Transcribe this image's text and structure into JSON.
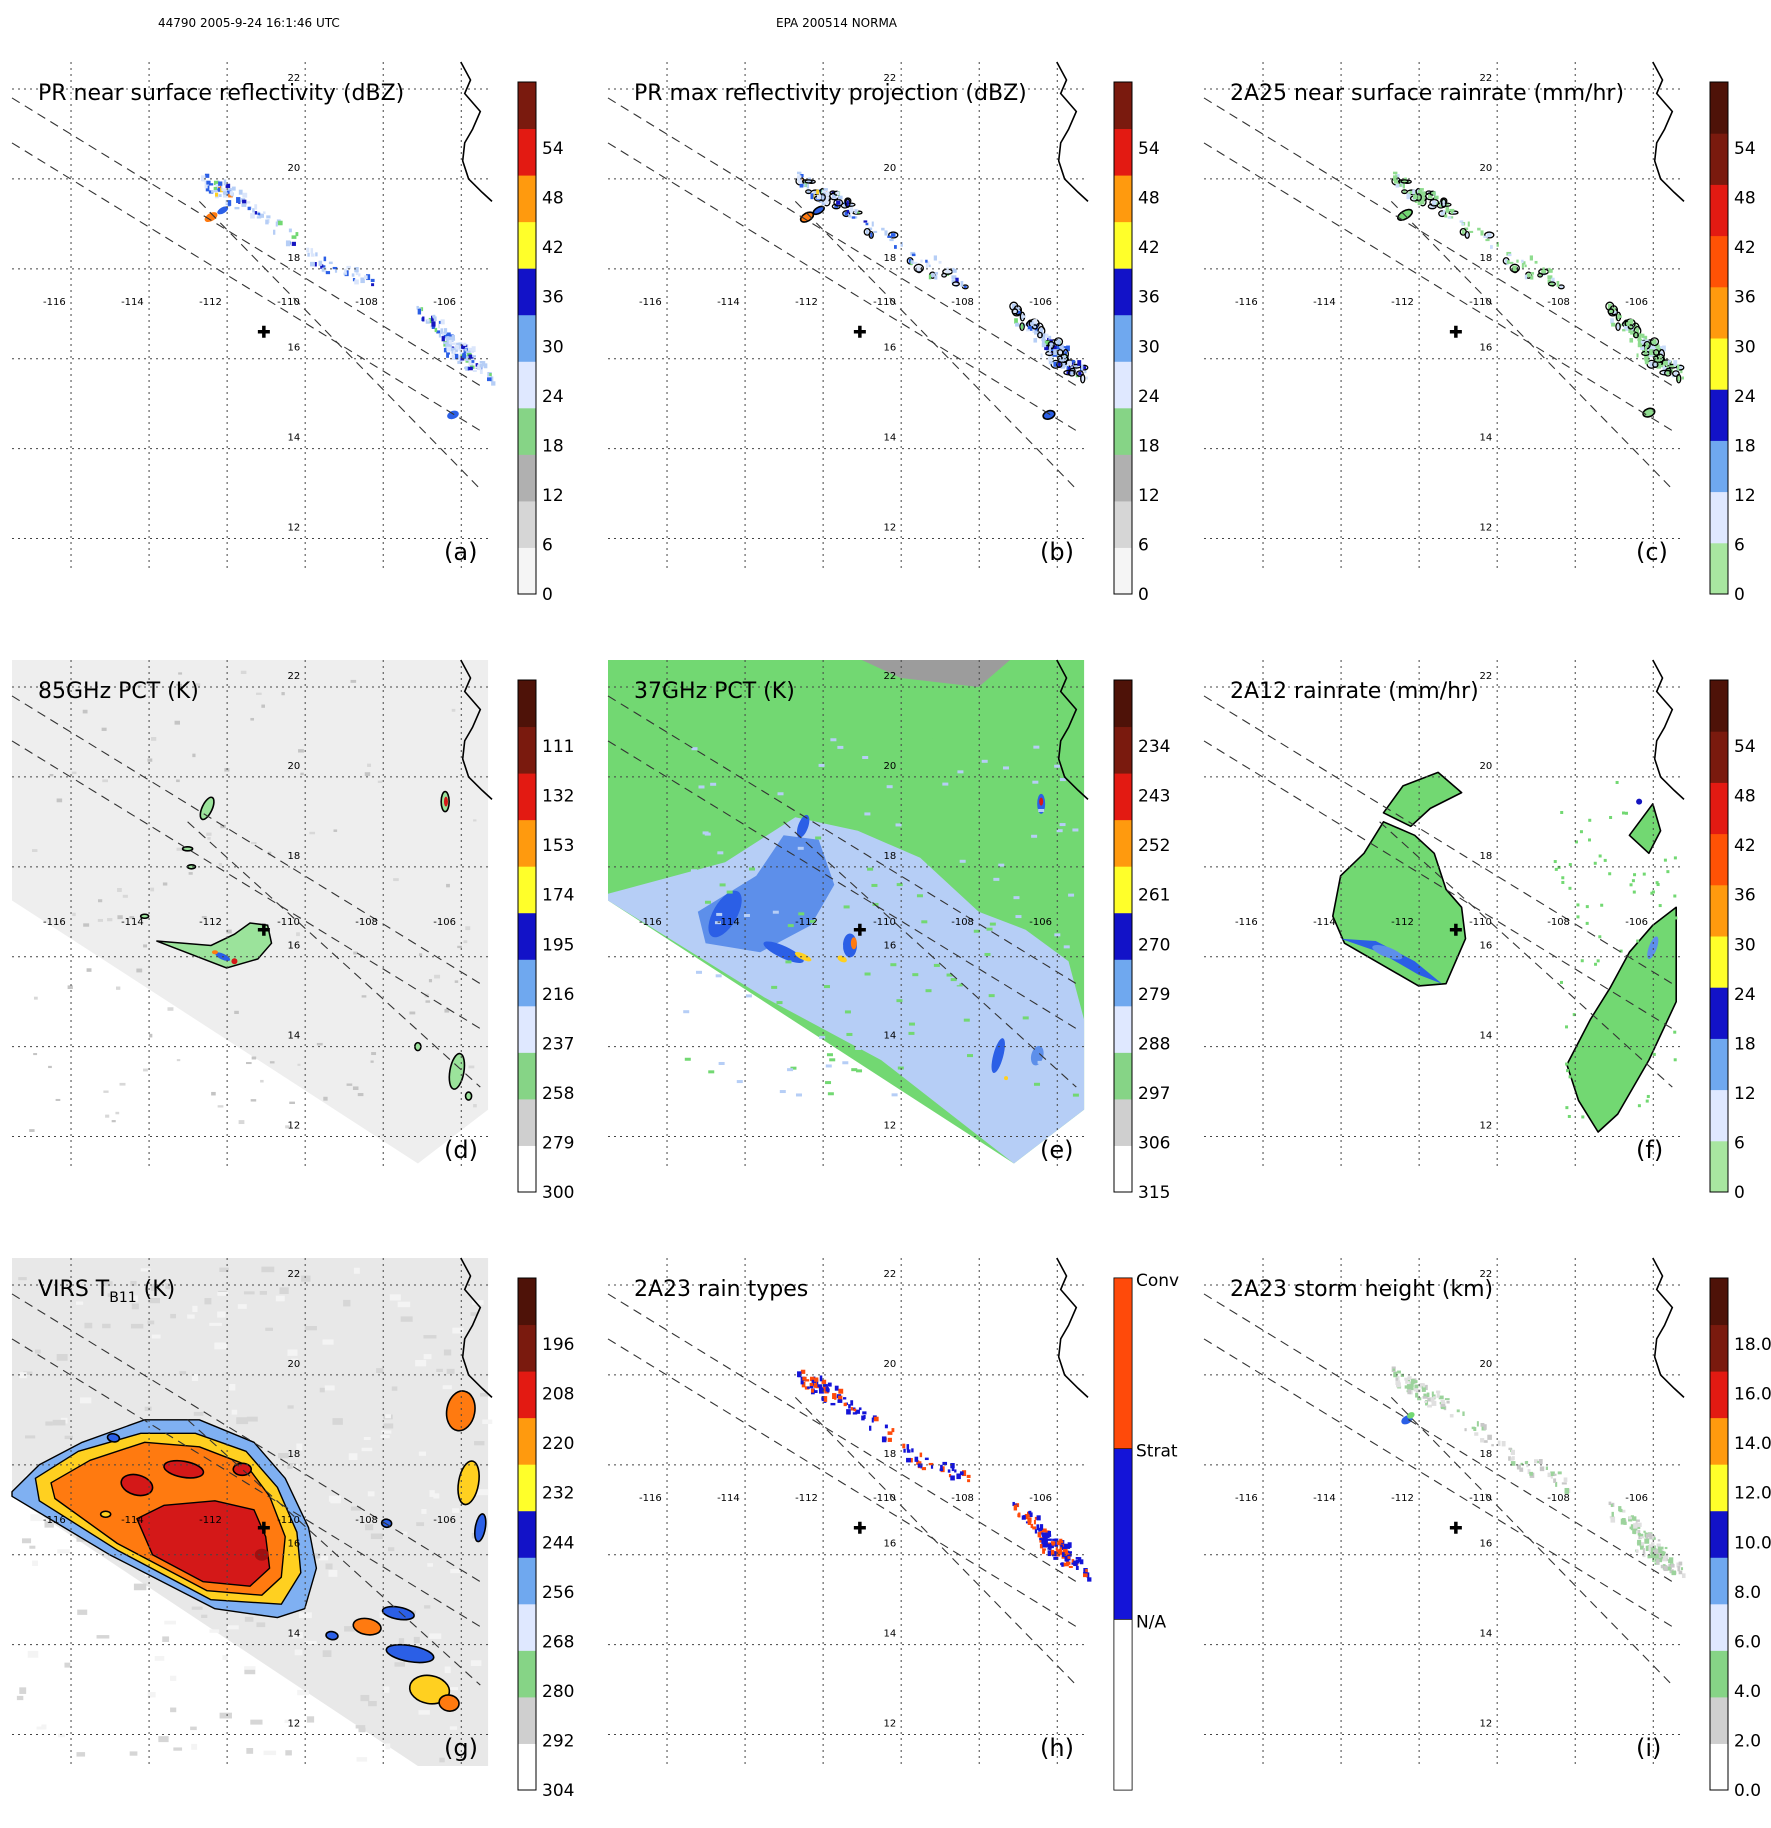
{
  "header": {
    "left": "44790 2005-9-24 16:1:46 UTC",
    "center": "EPA 200514 NORMA"
  },
  "colors": {
    "dbz_scale": [
      "#f2f2f2",
      "#dcdcdc",
      "#bcbcbc",
      "#9c9c9c",
      "#8bd68b",
      "#63c263",
      "#dfe8ff",
      "#b0ccf7",
      "#6fa8ef",
      "#3c72e6",
      "#1212c8",
      "#ffff2a",
      "#ffcb19",
      "#ff9a0e",
      "#ff5205",
      "#e31a12",
      "#b40a0a",
      "#7a1a0e",
      "#4e1208"
    ],
    "rain_scale": [
      "#a8e6a0",
      "#72cf72",
      "#dfe8ff",
      "#b0ccf7",
      "#6fa8ef",
      "#3c72e6",
      "#1212c8",
      "#ffff2a",
      "#ffcb19",
      "#ff9a0e",
      "#ff5205",
      "#e31a12",
      "#b40a0a",
      "#7a1a0e",
      "#4e1208"
    ],
    "gray_to_color": [
      "#ffffff",
      "#e8e8e8",
      "#cfcfcf",
      "#a8a8a8",
      "#8bd68b",
      "#63c263",
      "#dfe8ff",
      "#b0ccf7",
      "#6fa8ef",
      "#3c72e6",
      "#1212c8",
      "#ffff2a",
      "#ffcb19",
      "#ff9a0e",
      "#ff5205",
      "#e31a12",
      "#b40a0a",
      "#7a1a0e",
      "#4e1208"
    ],
    "raintype": [
      "#ffffff",
      "#1414d8",
      "#ff4a0a"
    ],
    "green": "#72d872",
    "lightblue": "#b6cef6",
    "blue": "#2b5fe6",
    "navy": "#1414c0",
    "red": "#d41818",
    "orange": "#ff7a10",
    "yellow": "#ffd020",
    "lightgray": "#e6e6e6"
  },
  "chart_data": [
    {
      "id": "a",
      "type": "heatmap",
      "title": "PR near surface reflectivity (dBZ)",
      "label": "(a)",
      "colorbar": {
        "ticks": [
          "0",
          "6",
          "12",
          "18",
          "24",
          "30",
          "36",
          "42",
          "48",
          "54"
        ],
        "vmin": 0,
        "vmax": 60
      },
      "lon_ticks": [
        "-116",
        "-114",
        "-112",
        "-110",
        "-108",
        "-106"
      ],
      "lat_ticks": [
        "22",
        "20",
        "18",
        "16",
        "14",
        "12"
      ],
      "swath": "pr",
      "field": "pr_surface"
    },
    {
      "id": "b",
      "type": "heatmap",
      "title": "PR max reflectivity projection (dBZ)",
      "label": "(b)",
      "colorbar": {
        "ticks": [
          "0",
          "6",
          "12",
          "18",
          "24",
          "30",
          "36",
          "42",
          "48",
          "54"
        ],
        "vmin": 0,
        "vmax": 60
      },
      "lon_ticks": [
        "-116",
        "-114",
        "-112",
        "-110",
        "-108",
        "-106"
      ],
      "lat_ticks": [
        "22",
        "20",
        "18",
        "16",
        "14",
        "12"
      ],
      "swath": "pr",
      "field": "pr_max"
    },
    {
      "id": "c",
      "type": "heatmap",
      "title": "2A25 near surface rainrate (mm/hr)",
      "label": "(c)",
      "colorbar": {
        "ticks": [
          "0",
          "6",
          "12",
          "18",
          "24",
          "30",
          "36",
          "42",
          "48",
          "54"
        ],
        "vmin": 0,
        "vmax": 60
      },
      "lon_ticks": [
        "-116",
        "-114",
        "-112",
        "-110",
        "-108",
        "-106"
      ],
      "lat_ticks": [
        "22",
        "20",
        "18",
        "16",
        "14",
        "12"
      ],
      "swath": "pr",
      "field": "rain25"
    },
    {
      "id": "d",
      "type": "heatmap",
      "title": "85GHz PCT (K)",
      "label": "(d)",
      "colorbar": {
        "ticks": [
          "300",
          "279",
          "258",
          "237",
          "216",
          "195",
          "174",
          "153",
          "132",
          "111"
        ],
        "vmin": 300,
        "vmax": 90
      },
      "lon_ticks": [
        "-116",
        "-114",
        "-112",
        "-110",
        "-108",
        "-106"
      ],
      "lat_ticks": [
        "22",
        "20",
        "18",
        "16",
        "14",
        "12"
      ],
      "swath": "tmi",
      "field": "pct85"
    },
    {
      "id": "e",
      "type": "heatmap",
      "title": "37GHz PCT (K)",
      "label": "(e)",
      "colorbar": {
        "ticks": [
          "315",
          "306",
          "297",
          "288",
          "279",
          "270",
          "261",
          "252",
          "243",
          "234"
        ],
        "vmin": 315,
        "vmax": 225
      },
      "lon_ticks": [
        "-116",
        "-114",
        "-112",
        "-110",
        "-108",
        "-106"
      ],
      "lat_ticks": [
        "22",
        "20",
        "18",
        "16",
        "14",
        "12"
      ],
      "swath": "tmi",
      "field": "pct37"
    },
    {
      "id": "f",
      "type": "heatmap",
      "title": "2A12 rainrate (mm/hr)",
      "label": "(f)",
      "colorbar": {
        "ticks": [
          "0",
          "6",
          "12",
          "18",
          "24",
          "30",
          "36",
          "42",
          "48",
          "54"
        ],
        "vmin": 0,
        "vmax": 60
      },
      "lon_ticks": [
        "-116",
        "-114",
        "-112",
        "-110",
        "-108",
        "-106"
      ],
      "lat_ticks": [
        "22",
        "20",
        "18",
        "16",
        "14",
        "12"
      ],
      "swath": "tmi",
      "field": "rain12"
    },
    {
      "id": "g",
      "type": "heatmap",
      "title": "VIRS T",
      "title_sub": "B11",
      "title_end": " (K)",
      "label": "(g)",
      "colorbar": {
        "ticks": [
          "304",
          "292",
          "280",
          "268",
          "256",
          "244",
          "232",
          "220",
          "208",
          "196"
        ],
        "vmin": 304,
        "vmax": 184
      },
      "lon_ticks": [
        "-116",
        "-114",
        "-112",
        "-110",
        "-108",
        "-106"
      ],
      "lat_ticks": [
        "22",
        "20",
        "18",
        "16",
        "14",
        "12"
      ],
      "swath": "virs",
      "field": "virs"
    },
    {
      "id": "h",
      "type": "heatmap",
      "title": "2A23 rain types",
      "label": "(h)",
      "colorbar": {
        "categories": [
          "N/A",
          "Strat",
          "Conv"
        ]
      },
      "lon_ticks": [
        "-116",
        "-114",
        "-112",
        "-110",
        "-108",
        "-106"
      ],
      "lat_ticks": [
        "22",
        "20",
        "18",
        "16",
        "14",
        "12"
      ],
      "swath": "pr",
      "field": "raintype"
    },
    {
      "id": "i",
      "type": "heatmap",
      "title": "2A23 storm height (km)",
      "label": "(i)",
      "colorbar": {
        "ticks": [
          "0.0",
          "2.0",
          "4.0",
          "6.0",
          "8.0",
          "10.0",
          "12.0",
          "14.0",
          "16.0",
          "18.0"
        ],
        "vmin": 0,
        "vmax": 20
      },
      "lon_ticks": [
        "-116",
        "-114",
        "-112",
        "-110",
        "-108",
        "-106"
      ],
      "lat_ticks": [
        "22",
        "20",
        "18",
        "16",
        "14",
        "12"
      ],
      "swath": "pr",
      "field": "height"
    }
  ],
  "map": {
    "lon_range": [
      -117.0,
      -104.7
    ],
    "lat_range": [
      10.9,
      22.2
    ],
    "grid_lons": [
      -116,
      -114,
      -112,
      -110,
      -108,
      -106
    ],
    "grid_lats": [
      22,
      20,
      18,
      16,
      14,
      12
    ],
    "storm_center": {
      "lon": -110.7,
      "lat": 16.2
    },
    "pr_swath_edges": [
      [
        [
          -117.0,
          21.4
        ],
        [
          -105.0,
          15.0
        ]
      ],
      [
        [
          -117.0,
          20.4
        ],
        [
          -105.0,
          14.0
        ]
      ],
      [
        [
          -112.2,
          19.1
        ],
        [
          -105.0,
          12.7
        ]
      ]
    ],
    "tmi_swath_edges": [
      [
        [
          -117.0,
          21.4
        ],
        [
          -105.0,
          15.0
        ]
      ],
      [
        [
          -117.0,
          20.4
        ],
        [
          -105.0,
          14.0
        ]
      ],
      [
        [
          -112.5,
          18.6
        ],
        [
          -105.0,
          12.7
        ]
      ]
    ],
    "coast": [
      [
        -105.5,
        22.2
      ],
      [
        -105.25,
        21.8
      ],
      [
        -105.4,
        21.5
      ],
      [
        -105.0,
        21.1
      ],
      [
        -105.2,
        20.7
      ],
      [
        -105.4,
        20.4
      ],
      [
        -105.45,
        20.0
      ],
      [
        -105.3,
        19.6
      ],
      [
        -104.95,
        19.3
      ],
      [
        -104.7,
        19.1
      ]
    ]
  }
}
